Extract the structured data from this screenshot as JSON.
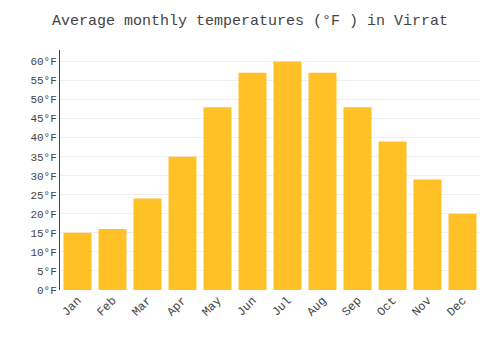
{
  "chart_data": {
    "type": "bar",
    "title": "Average monthly temperatures (°F ) in Virrat",
    "categories": [
      "Jan",
      "Feb",
      "Mar",
      "Apr",
      "May",
      "Jun",
      "Jul",
      "Aug",
      "Sep",
      "Oct",
      "Nov",
      "Dec"
    ],
    "values": [
      15,
      16,
      24,
      35,
      48,
      57,
      60,
      57,
      48,
      39,
      29,
      20
    ],
    "color": "#FFC125",
    "ylim": [
      0,
      63
    ],
    "yticks": [
      {
        "value": 0,
        "label": "0°F"
      },
      {
        "value": 5,
        "label": "5°F"
      },
      {
        "value": 10,
        "label": "10°F"
      },
      {
        "value": 15,
        "label": "15°F"
      },
      {
        "value": 20,
        "label": "20°F"
      },
      {
        "value": 25,
        "label": "25°F"
      },
      {
        "value": 30,
        "label": "30°F"
      },
      {
        "value": 35,
        "label": "35°F"
      },
      {
        "value": 40,
        "label": "40°F"
      },
      {
        "value": 45,
        "label": "45°F"
      },
      {
        "value": 50,
        "label": "50°F"
      },
      {
        "value": 55,
        "label": "55°F"
      },
      {
        "value": 60,
        "label": "60°F"
      }
    ],
    "grid": true
  }
}
